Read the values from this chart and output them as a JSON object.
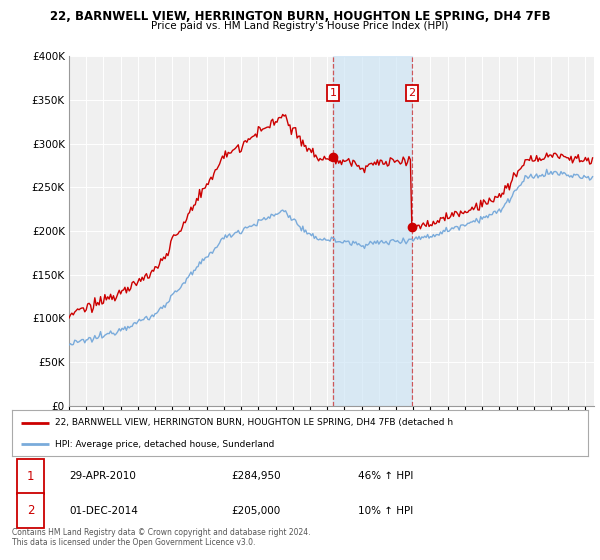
{
  "title1": "22, BARNWELL VIEW, HERRINGTON BURN, HOUGHTON LE SPRING, DH4 7FB",
  "title2": "Price paid vs. HM Land Registry's House Price Index (HPI)",
  "legend_line1": "22, BARNWELL VIEW, HERRINGTON BURN, HOUGHTON LE SPRING, DH4 7FB (detached h",
  "legend_line2": "HPI: Average price, detached house, Sunderland",
  "sale1_label": "1",
  "sale1_date": "29-APR-2010",
  "sale1_price": "£284,950",
  "sale1_hpi": "46% ↑ HPI",
  "sale2_label": "2",
  "sale2_date": "01-DEC-2014",
  "sale2_price": "£205,000",
  "sale2_hpi": "10% ↑ HPI",
  "footer": "Contains HM Land Registry data © Crown copyright and database right 2024.\nThis data is licensed under the Open Government Licence v3.0.",
  "price_color": "#cc0000",
  "hpi_color": "#7aabdb",
  "sale1_x": 2010.33,
  "sale2_x": 2014.92,
  "sale1_y": 284950,
  "sale2_y": 205000,
  "shade_x1": 2010.33,
  "shade_x2": 2014.92,
  "ylim": [
    0,
    400000
  ],
  "xlim_start": 1995,
  "xlim_end": 2025.5
}
